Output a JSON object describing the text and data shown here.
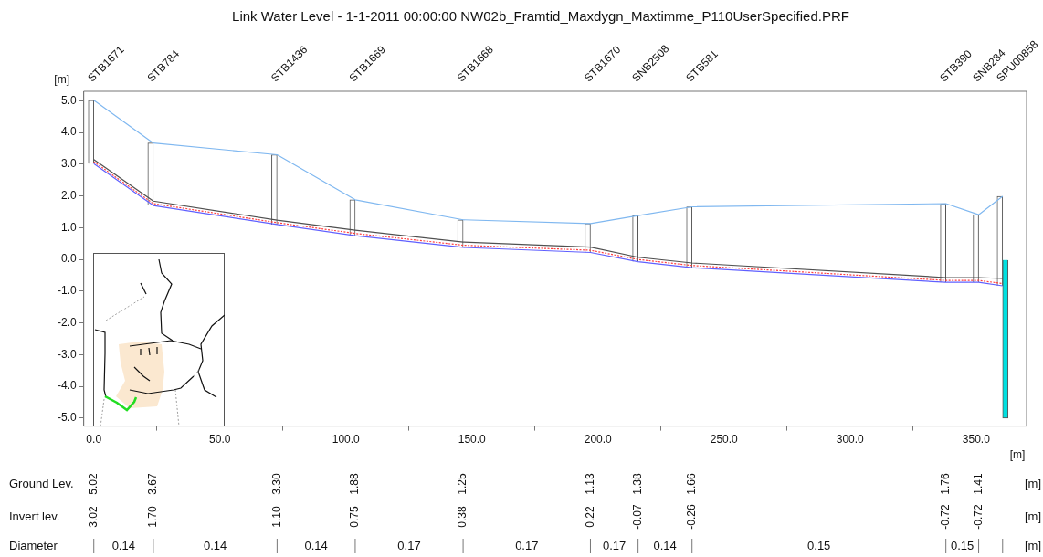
{
  "chart_data": {
    "type": "line",
    "title": "Link Water Level - 1-1-2011 00:00:00 NW02b_Framtid_Maxdygn_Maxtimme_P110UserSpecified.PRF",
    "xlabel": "[m]",
    "ylabel": "[m]",
    "x": [
      0,
      23.6,
      72.7,
      103.7,
      146.5,
      197,
      215.9,
      237.3,
      338,
      351,
      360.5
    ],
    "series": [
      {
        "type": "bar",
        "color": "#ffffff",
        "base": [
          3.02,
          1.7,
          1.1,
          0.75,
          0.38,
          0.22,
          -0.07,
          -0.26,
          -0.72,
          -0.72,
          -0.83
        ],
        "values": [
          2.0,
          1.97,
          2.2,
          1.13,
          0.87,
          0.91,
          1.45,
          1.92,
          2.48,
          2.13,
          2.82
        ]
      },
      {
        "type": "bar",
        "color": "#00e0e0",
        "x": [
          360.5
        ],
        "base": [
          -5.0
        ],
        "values": [
          5.0
        ]
      },
      {
        "type": "line",
        "color": "#80b8f0",
        "values": [
          5.02,
          3.67,
          3.3,
          1.88,
          1.25,
          1.13,
          1.38,
          1.66,
          1.76,
          1.41,
          1.99
        ]
      },
      {
        "type": "line",
        "color": "#6060ff",
        "values": [
          3.02,
          1.7,
          1.1,
          0.75,
          0.38,
          0.22,
          -0.07,
          -0.26,
          -0.72,
          -0.72,
          -0.83
        ]
      },
      {
        "type": "line",
        "color": "#505050",
        "values": [
          3.15,
          1.84,
          1.24,
          0.92,
          0.55,
          0.39,
          0.07,
          -0.11,
          -0.57,
          -0.57,
          -0.6
        ]
      },
      {
        "type": "line",
        "color": "#ff4040",
        "line_style": "dotted",
        "values": [
          3.08,
          1.76,
          1.16,
          0.82,
          0.45,
          0.29,
          0.0,
          -0.19,
          -0.66,
          -0.66,
          -0.76
        ]
      }
    ],
    "xlim": [
      -4,
      370
    ],
    "xticks": [
      {
        "value": 0,
        "label": "0.0"
      },
      {
        "value": 50,
        "label": "50.0"
      },
      {
        "value": 100,
        "label": "100.0"
      },
      {
        "value": 150,
        "label": "150.0"
      },
      {
        "value": 200,
        "label": "200.0"
      },
      {
        "value": 250,
        "label": "250.0"
      },
      {
        "value": 300,
        "label": "300.0"
      },
      {
        "value": 350,
        "label": "350.0"
      }
    ],
    "ylim": [
      -5.25,
      5.3
    ],
    "yticks": [
      {
        "value": -5,
        "label": "-5.0"
      },
      {
        "value": -4,
        "label": "-4.0"
      },
      {
        "value": -3,
        "label": "-3.0"
      },
      {
        "value": -2,
        "label": "-2.0"
      },
      {
        "value": -1,
        "label": "-1.0"
      },
      {
        "value": 0,
        "label": "0.0"
      },
      {
        "value": 1,
        "label": "1.0"
      },
      {
        "value": 2,
        "label": "2.0"
      },
      {
        "value": 3,
        "label": "3.0"
      },
      {
        "value": 4,
        "label": "4.0"
      },
      {
        "value": 5,
        "label": "5.0"
      }
    ],
    "legend": false,
    "annotations": [
      "Ground Lev.",
      "5.02",
      "3.67",
      "3.30",
      "1.88",
      "1.25",
      "1.13",
      "1.38",
      "1.66",
      "1.76",
      "1.41",
      "Invert lev.",
      "3.02",
      "1.70",
      "1.10",
      "0.75",
      "0.38",
      "0.22",
      "-0.07",
      "-0.26",
      "-0.72",
      "-0.72",
      "Diameter",
      "0.14",
      "0.14",
      "0.14",
      "0.17",
      "0.17",
      "0.17",
      "0.14",
      "0.15",
      "0.15",
      "[m]",
      "[m]",
      "[m]",
      "STB1671",
      "STB784",
      "STB1436",
      "STB1669",
      "STB1668",
      "STB1670",
      "SNB2508",
      "STB581",
      "STB390",
      "SNB284",
      "SPU00858"
    ]
  }
}
